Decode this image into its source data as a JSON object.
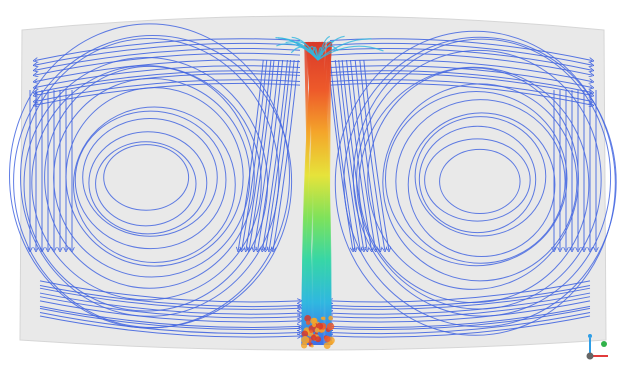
{
  "scene": {
    "background_color": "#ffffff",
    "domain_fill": "#e9e9e9",
    "domain_stroke": "#d6d6d6",
    "streamline_color": "#4466e0",
    "plume_colormap": [
      "#3d6ee8",
      "#2fb7e0",
      "#36d6a6",
      "#7ee25a",
      "#e6e33a",
      "#f4a62a",
      "#ee5a2a",
      "#d8392a"
    ]
  },
  "orientation_triad": {
    "x_axis_color": "#e23b3b",
    "y_axis_color": "#31b24a",
    "z_axis_color": "#2f9ee6"
  }
}
